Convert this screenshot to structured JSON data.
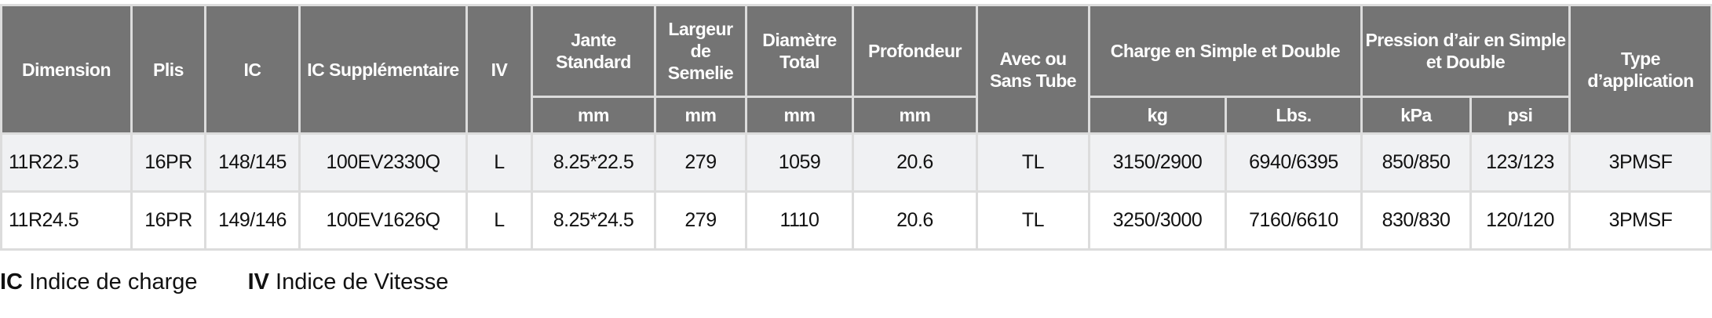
{
  "header": {
    "dimension": "Dimension",
    "plis": "Plis",
    "ic": "IC",
    "ic_supp": "IC Supplémentaire",
    "iv": "IV",
    "jante": "Jante Standard",
    "largeur": "Largeur de Semelie",
    "diametre": "Diamètre Total",
    "profondeur": "Profondeur",
    "tube": "Avec ou Sans Tube",
    "charge": "Charge en Simple et Double",
    "pression": "Pression d’air en Simple et Double",
    "type": "Type d’application",
    "units": {
      "jante": "mm",
      "largeur": "mm",
      "diametre": "mm",
      "profondeur": "mm",
      "kg": "kg",
      "lbs": "Lbs.",
      "kpa": "kPa",
      "psi": "psi"
    }
  },
  "rows": [
    {
      "dimension": "11R22.5",
      "plis": "16PR",
      "ic": "148/145",
      "ic_supp": "100EV2330Q",
      "iv": "L",
      "jante": "8.25*22.5",
      "largeur": "279",
      "diametre": "1059",
      "profondeur": "20.6",
      "tube": "TL",
      "kg": "3150/2900",
      "lbs": "6940/6395",
      "kpa": "850/850",
      "psi": "123/123",
      "type": "3PMSF"
    },
    {
      "dimension": "11R24.5",
      "plis": "16PR",
      "ic": "149/146",
      "ic_supp": "100EV1626Q",
      "iv": "L",
      "jante": "8.25*24.5",
      "largeur": "279",
      "diametre": "1110",
      "profondeur": "20.6",
      "tube": "TL",
      "kg": "3250/3000",
      "lbs": "7160/6610",
      "kpa": "830/830",
      "psi": "120/120",
      "type": "3PMSF"
    }
  ],
  "legend": [
    {
      "abbr": "IC",
      "text": "Indice de charge"
    },
    {
      "abbr": "IV",
      "text": "Indice de Vitesse"
    }
  ]
}
